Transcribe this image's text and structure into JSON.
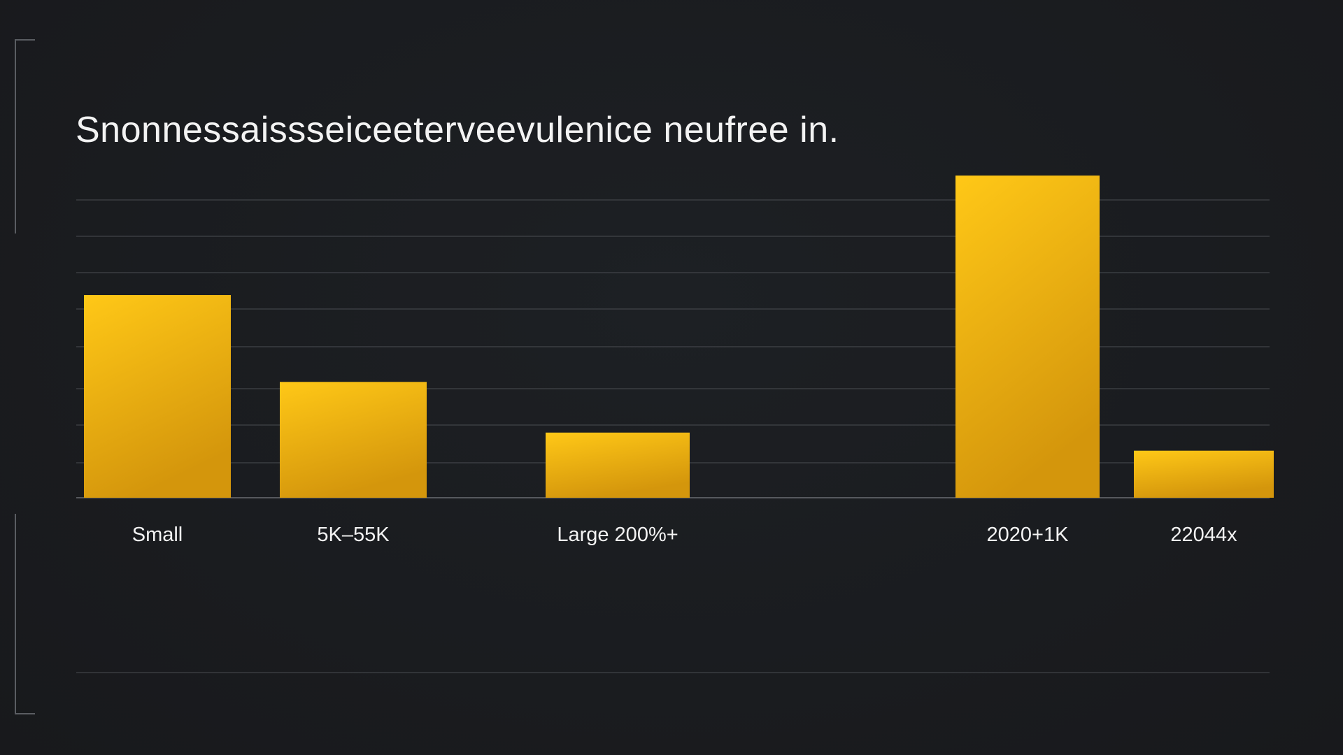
{
  "title": "Snonnessaissseiceeterveevulenice neufree in.",
  "colors": {
    "background": "#1a1c1f",
    "bar_top": "#ffc817",
    "bar_bottom": "#d4960c",
    "grid": "#4a4d52",
    "text": "#f3f3f3"
  },
  "chart_data": {
    "type": "bar",
    "title": "Snonnessaissseiceeterveevulenice neufree in.",
    "categories": [
      "Small",
      "5K–55K",
      "Large 200%+",
      "",
      "2020+1K",
      "22044x"
    ],
    "values": [
      5.6,
      3.2,
      1.8,
      0,
      8.9,
      1.3
    ],
    "ylim": [
      0,
      9
    ],
    "grid": true,
    "xlabel": "",
    "ylabel": "",
    "legend": "none"
  }
}
